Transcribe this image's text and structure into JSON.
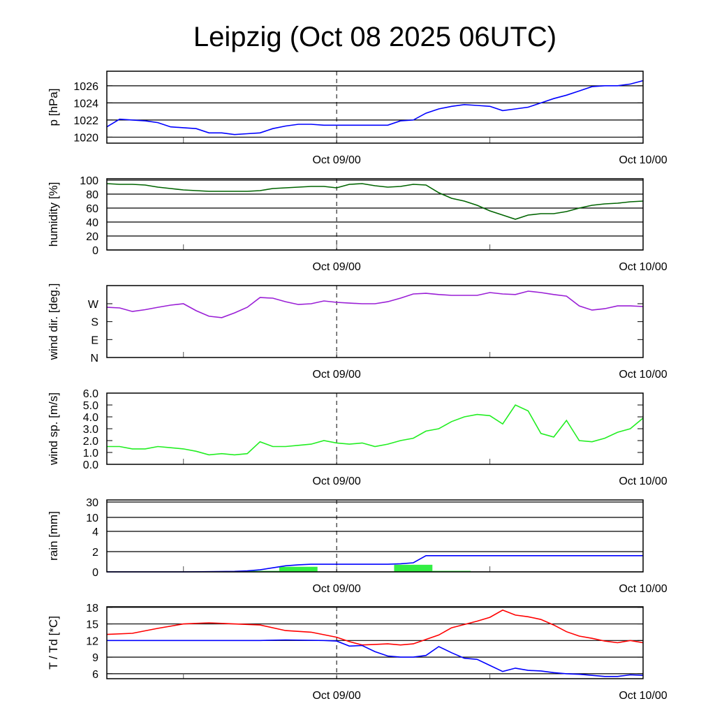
{
  "title": "Leipzig (Oct 08 2025 06UTC)",
  "chart_data": [
    {
      "id": "pressure",
      "type": "line",
      "ylabel": "p [hPa]",
      "ylim": [
        1019.3,
        1027.7
      ],
      "yticks": [
        1020,
        1022,
        1024,
        1026
      ],
      "ytick_labels": [
        "1020",
        "1022",
        "1024",
        "1026"
      ],
      "grid": true,
      "xlim": [
        0,
        42
      ],
      "xticks": [
        6,
        18,
        30,
        42
      ],
      "xtick_labels": [
        "Oct 09/00",
        "Oct 10/00"
      ],
      "xtick_label_hours": [
        18,
        42
      ],
      "series": [
        {
          "name": "pressure",
          "color": "#0000ff",
          "x": [
            0,
            1,
            2,
            3,
            4,
            5,
            6,
            7,
            8,
            9,
            10,
            11,
            12,
            13,
            14,
            15,
            16,
            17,
            18,
            19,
            20,
            21,
            22,
            23,
            24,
            25,
            26,
            27,
            28,
            29,
            30,
            31,
            32,
            33,
            34,
            35,
            36,
            37,
            38,
            39,
            40,
            41,
            42
          ],
          "values": [
            1021.2,
            1022.1,
            1022,
            1021.9,
            1021.7,
            1021.2,
            1021.1,
            1021,
            1020.5,
            1020.5,
            1020.3,
            1020.4,
            1020.5,
            1021,
            1021.3,
            1021.5,
            1021.5,
            1021.4,
            1021.4,
            1021.4,
            1021.4,
            1021.4,
            1021.4,
            1021.9,
            1022,
            1022.8,
            1023.3,
            1023.6,
            1023.8,
            1023.7,
            1023.6,
            1023.1,
            1023.3,
            1023.5,
            1024,
            1024.5,
            1024.9,
            1025.4,
            1025.9,
            1026,
            1026,
            1026.2,
            1026.6
          ]
        }
      ]
    },
    {
      "id": "humidity",
      "type": "line",
      "ylabel": "humidity [%]",
      "ylim": [
        0,
        102
      ],
      "yticks": [
        0,
        20,
        40,
        60,
        80,
        100
      ],
      "ytick_labels": [
        "0",
        "20",
        "40",
        "60",
        "80",
        "100"
      ],
      "grid": true,
      "xlim": [
        0,
        42
      ],
      "xticks": [
        6,
        18,
        30,
        42
      ],
      "xtick_labels": [
        "Oct 09/00",
        "Oct 10/00"
      ],
      "xtick_label_hours": [
        18,
        42
      ],
      "series": [
        {
          "name": "humidity",
          "color": "#006400",
          "x": [
            0,
            1,
            2,
            3,
            4,
            5,
            6,
            7,
            8,
            9,
            10,
            11,
            12,
            13,
            14,
            15,
            16,
            17,
            18,
            19,
            20,
            21,
            22,
            23,
            24,
            25,
            26,
            27,
            28,
            29,
            30,
            31,
            32,
            33,
            34,
            35,
            36,
            37,
            38,
            39,
            40,
            41,
            42
          ],
          "values": [
            95,
            94,
            94,
            93,
            90,
            88,
            86,
            85,
            84,
            84,
            84,
            84,
            85,
            88,
            89,
            90,
            91,
            91,
            89,
            94,
            95,
            92,
            90,
            91,
            94,
            93,
            82,
            74,
            70,
            64,
            56,
            50,
            44,
            50,
            52,
            52,
            55,
            60,
            64,
            66,
            67,
            69,
            70
          ]
        }
      ]
    },
    {
      "id": "wind_direction",
      "type": "line",
      "ylabel": "wind dir. [deg.]",
      "ylim": [
        0,
        361
      ],
      "yticks": [
        0,
        90,
        180,
        270
      ],
      "ytick_labels": [
        "N",
        "E",
        "S",
        "W"
      ],
      "grid": false,
      "xlim": [
        0,
        42
      ],
      "xticks": [
        6,
        18,
        30,
        42
      ],
      "xtick_labels": [
        "Oct 09/00",
        "Oct 10/00"
      ],
      "xtick_label_hours": [
        18,
        42
      ],
      "series": [
        {
          "name": "wind direction",
          "color": "#9a1fd6",
          "x": [
            0,
            1,
            2,
            3,
            4,
            5,
            6,
            7,
            8,
            9,
            10,
            11,
            12,
            13,
            14,
            15,
            16,
            17,
            18,
            19,
            20,
            21,
            22,
            23,
            24,
            25,
            26,
            27,
            28,
            29,
            30,
            31,
            32,
            33,
            34,
            35,
            36,
            37,
            38,
            39,
            40,
            41,
            42
          ],
          "values": [
            252,
            249,
            231,
            240,
            252,
            263,
            270,
            235,
            207,
            200,
            224,
            252,
            301,
            298,
            280,
            266,
            270,
            284,
            277,
            273,
            270,
            270,
            280,
            298,
            319,
            322,
            316,
            312,
            312,
            312,
            326,
            319,
            316,
            333,
            326,
            316,
            308,
            259,
            238,
            245,
            259,
            259,
            256
          ]
        }
      ]
    },
    {
      "id": "wind_speed",
      "type": "line",
      "ylabel": "wind sp. [m/s]",
      "ylim": [
        0,
        6
      ],
      "yticks": [
        0,
        1,
        2,
        3,
        4,
        5,
        6
      ],
      "ytick_labels": [
        "0.0",
        "1.0",
        "2.0",
        "3.0",
        "4.0",
        "5.0",
        "6.0"
      ],
      "grid": false,
      "xlim": [
        0,
        42
      ],
      "xticks": [
        6,
        18,
        30,
        42
      ],
      "xtick_labels": [
        "Oct 09/00",
        "Oct 10/00"
      ],
      "xtick_label_hours": [
        18,
        42
      ],
      "series": [
        {
          "name": "wind speed",
          "color": "#22ee22",
          "x": [
            0,
            1,
            2,
            3,
            4,
            5,
            6,
            7,
            8,
            9,
            10,
            11,
            12,
            13,
            14,
            15,
            16,
            17,
            18,
            19,
            20,
            21,
            22,
            23,
            24,
            25,
            26,
            27,
            28,
            29,
            30,
            31,
            32,
            33,
            34,
            35,
            36,
            37,
            38,
            39,
            40,
            41,
            42
          ],
          "values": [
            1.5,
            1.5,
            1.3,
            1.3,
            1.5,
            1.4,
            1.3,
            1.1,
            0.8,
            0.9,
            0.8,
            0.9,
            1.9,
            1.5,
            1.5,
            1.6,
            1.7,
            2.0,
            1.8,
            1.7,
            1.8,
            1.5,
            1.7,
            2.0,
            2.2,
            2.8,
            3.0,
            3.6,
            4.0,
            4.2,
            4.1,
            3.4,
            5.0,
            4.5,
            2.6,
            2.3,
            3.7,
            2.0,
            1.9,
            2.2,
            2.7,
            3.0,
            3.9
          ]
        }
      ]
    },
    {
      "id": "rain",
      "type": "bar+line",
      "ylabel": "rain [mm]",
      "ylim": [
        0,
        31
      ],
      "scale": "piecewise",
      "yticks": [
        0,
        2,
        4,
        10,
        30
      ],
      "ytick_labels": [
        "0",
        "2",
        "4",
        "10",
        "30"
      ],
      "grid": true,
      "xlim": [
        0,
        42
      ],
      "xticks": [
        6,
        18,
        30,
        42
      ],
      "xtick_labels": [
        "Oct 09/00",
        "Oct 10/00"
      ],
      "xtick_label_hours": [
        18,
        42
      ],
      "bars": {
        "name": "3h precipitation",
        "color": "#33ee44",
        "bar_width_hours": 3,
        "x": [
          9,
          12,
          15,
          24,
          27
        ],
        "values": [
          0.05,
          0.1,
          0.5,
          0.7,
          0.1
        ]
      },
      "series": [
        {
          "name": "accumulated precipitation",
          "color": "#0000ff",
          "x": [
            0,
            6,
            8,
            10,
            11,
            12,
            13,
            14,
            15,
            16,
            22,
            23,
            24,
            25,
            26,
            42
          ],
          "values": [
            0,
            0,
            0.02,
            0.05,
            0.1,
            0.2,
            0.4,
            0.6,
            0.7,
            0.75,
            0.75,
            0.8,
            0.9,
            1.6,
            1.6,
            1.6
          ]
        }
      ]
    },
    {
      "id": "temperature",
      "type": "line",
      "ylabel": "T / Td [*C]",
      "ylim": [
        5.1,
        18.1
      ],
      "yticks": [
        6,
        9,
        12,
        15,
        18
      ],
      "ytick_labels": [
        "6",
        "9",
        "12",
        "15",
        "18"
      ],
      "grid": true,
      "xlim": [
        0,
        42
      ],
      "xticks": [
        6,
        18,
        30,
        42
      ],
      "xtick_labels": [
        "Oct 09/00",
        "Oct 10/00"
      ],
      "xtick_label_hours": [
        18,
        42
      ],
      "series": [
        {
          "name": "T",
          "color": "#ff0000",
          "x": [
            0,
            2,
            4,
            6,
            8,
            10,
            12,
            14,
            16,
            18,
            19,
            20,
            21,
            22,
            23,
            24,
            25,
            26,
            27,
            28,
            29,
            30,
            31,
            32,
            33,
            34,
            35,
            36,
            37,
            38,
            39,
            40,
            41,
            42
          ],
          "values": [
            13.1,
            13.3,
            14.2,
            15,
            15.2,
            15,
            14.8,
            13.8,
            13.5,
            12.6,
            11.8,
            11.2,
            11.3,
            11.4,
            11.2,
            11.4,
            12.2,
            13,
            14.3,
            14.9,
            15.5,
            16.2,
            17.5,
            16.6,
            16.3,
            15.8,
            14.8,
            13.6,
            12.8,
            12.4,
            11.9,
            11.6,
            12,
            11.6
          ]
        },
        {
          "name": "Td",
          "color": "#0000ff",
          "x": [
            0,
            4,
            8,
            12,
            14,
            17,
            18,
            19,
            20,
            21,
            22,
            23,
            24,
            25,
            26,
            27,
            28,
            29,
            30,
            31,
            32,
            33,
            34,
            35,
            36,
            37,
            38,
            39,
            40,
            41,
            42
          ],
          "values": [
            12,
            12,
            12,
            12,
            12.1,
            12,
            11.9,
            11,
            11.1,
            10,
            9.2,
            9,
            9,
            9.3,
            10.9,
            9.8,
            8.8,
            8.6,
            7.5,
            6.4,
            7,
            6.6,
            6.5,
            6.2,
            6,
            5.9,
            5.7,
            5.5,
            5.5,
            5.8,
            5.7
          ]
        }
      ]
    }
  ]
}
